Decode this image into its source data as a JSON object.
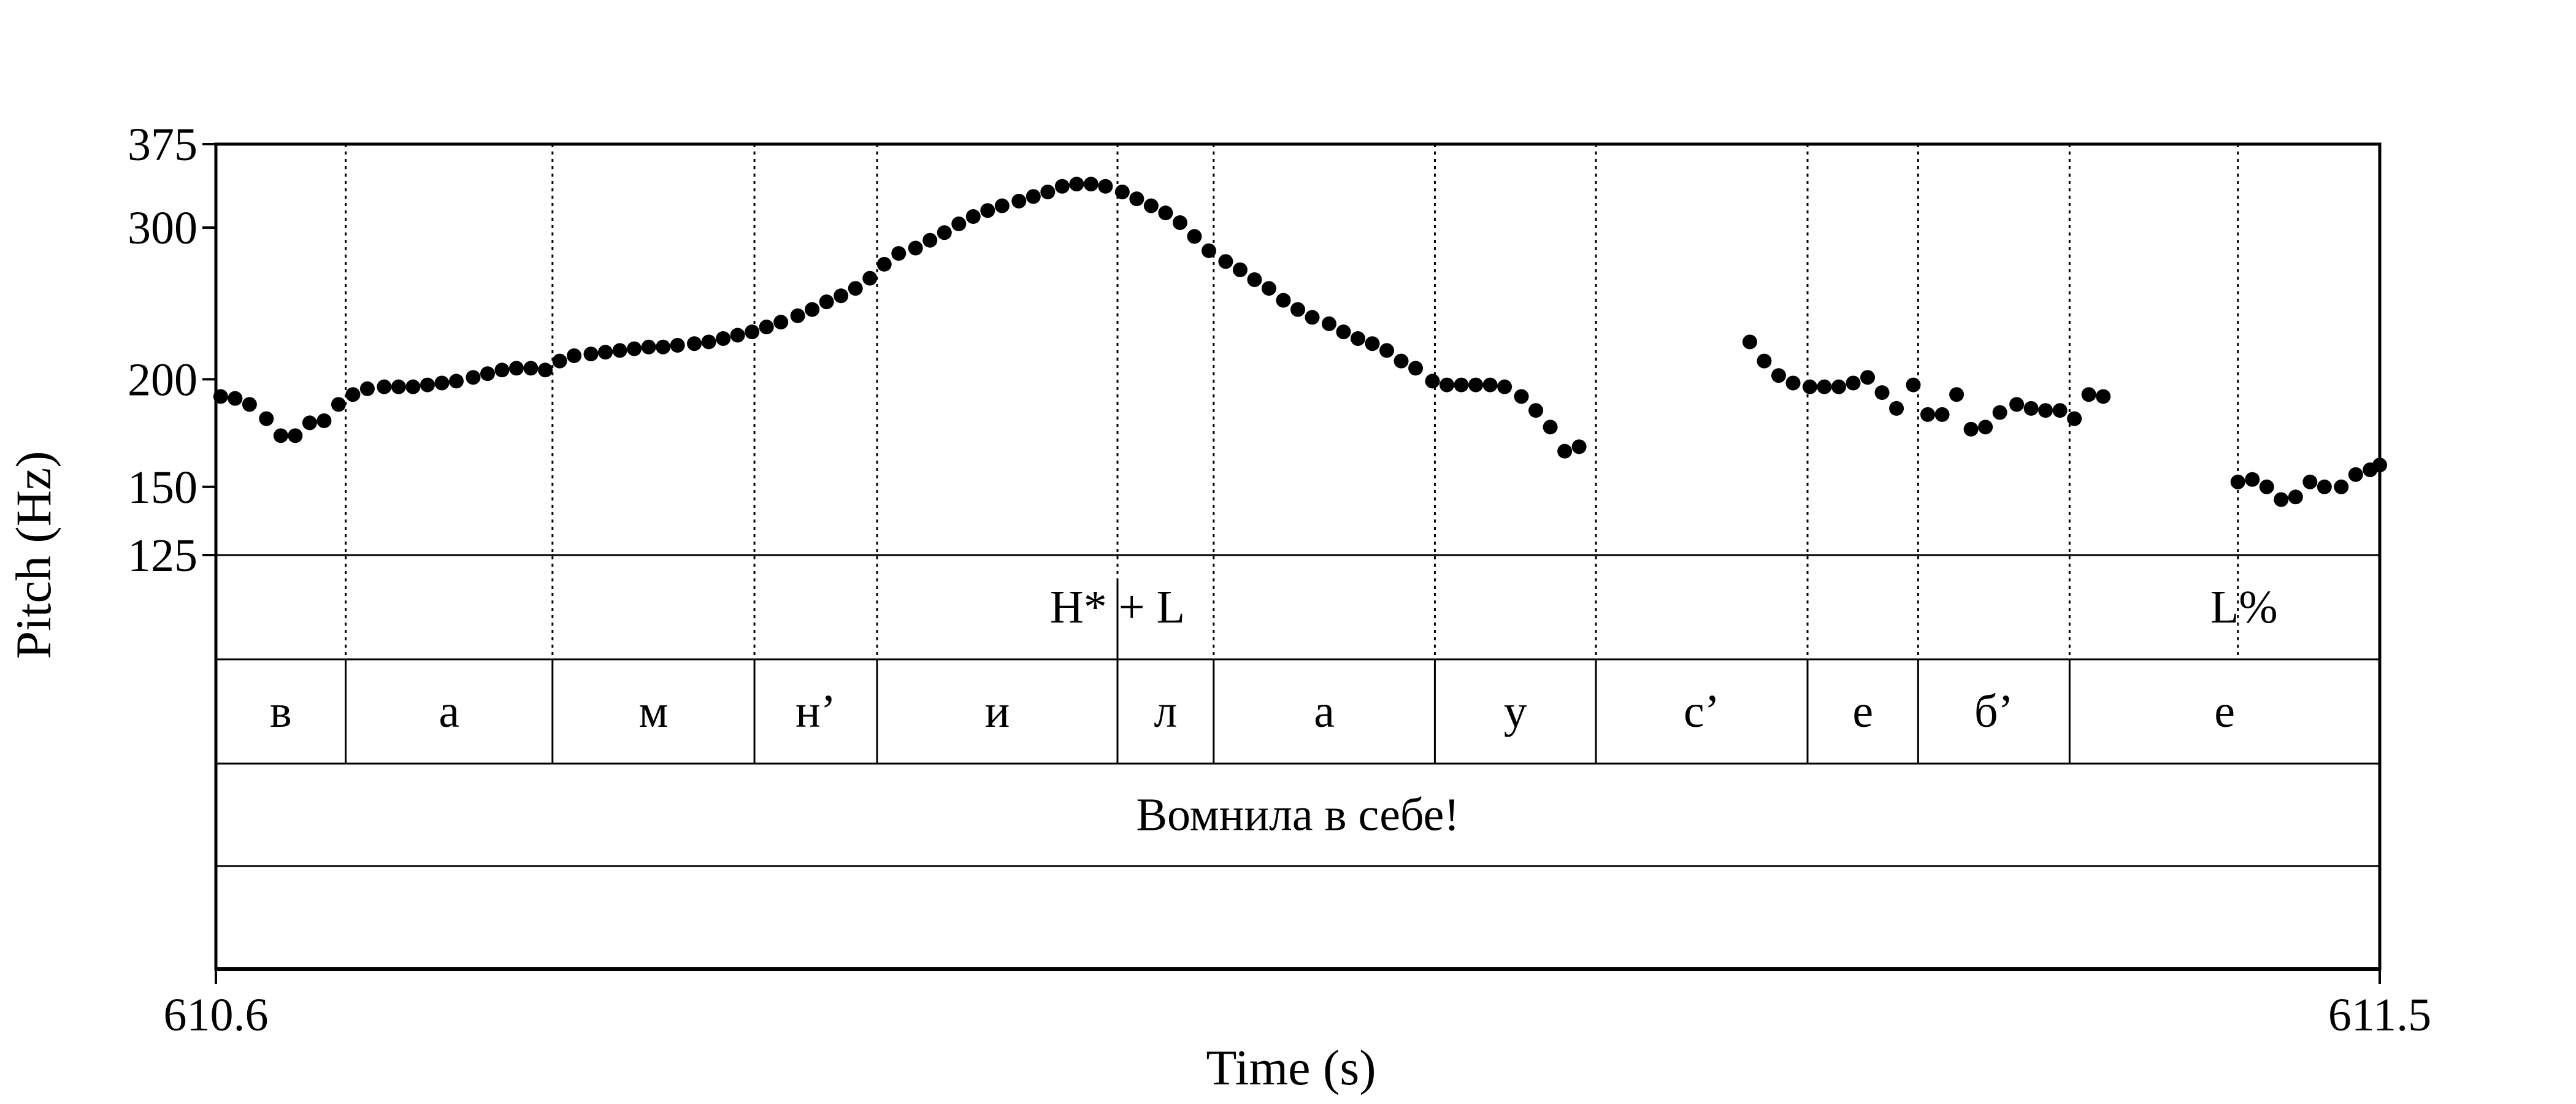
{
  "chart_data": {
    "type": "scatter",
    "xlabel": "Time (s)",
    "ylabel": "Pitch (Hz)",
    "xlim": [
      610.6,
      611.5
    ],
    "ylim": [
      125,
      375
    ],
    "y_scale": "log",
    "x_ticks": [
      "610.6",
      "611.5"
    ],
    "y_ticks": [
      375,
      300,
      200,
      150,
      125
    ],
    "pitch_points": [
      [
        610.602,
        191
      ],
      [
        610.608,
        190
      ],
      [
        610.614,
        187
      ],
      [
        610.621,
        180
      ],
      [
        610.627,
        172
      ],
      [
        610.633,
        172
      ],
      [
        610.639,
        178
      ],
      [
        610.645,
        179
      ],
      [
        610.651,
        187
      ],
      [
        610.657,
        192
      ],
      [
        610.663,
        195
      ],
      [
        610.67,
        196
      ],
      [
        610.676,
        196
      ],
      [
        610.682,
        196
      ],
      [
        610.688,
        197
      ],
      [
        610.694,
        198
      ],
      [
        610.7,
        199
      ],
      [
        610.707,
        201
      ],
      [
        610.713,
        203
      ],
      [
        610.719,
        205
      ],
      [
        610.725,
        206
      ],
      [
        610.731,
        206
      ],
      [
        610.737,
        205
      ],
      [
        610.743,
        210
      ],
      [
        610.749,
        213
      ],
      [
        610.756,
        214
      ],
      [
        610.762,
        215
      ],
      [
        610.768,
        216
      ],
      [
        610.774,
        217
      ],
      [
        610.78,
        218
      ],
      [
        610.786,
        218
      ],
      [
        610.792,
        219
      ],
      [
        610.799,
        220
      ],
      [
        610.805,
        221
      ],
      [
        610.811,
        223
      ],
      [
        610.817,
        225
      ],
      [
        610.823,
        227
      ],
      [
        610.829,
        230
      ],
      [
        610.835,
        233
      ],
      [
        610.842,
        237
      ],
      [
        610.848,
        241
      ],
      [
        610.854,
        246
      ],
      [
        610.86,
        250
      ],
      [
        610.866,
        255
      ],
      [
        610.872,
        262
      ],
      [
        610.878,
        272
      ],
      [
        610.884,
        280
      ],
      [
        610.891,
        284
      ],
      [
        610.897,
        290
      ],
      [
        610.903,
        296
      ],
      [
        610.909,
        303
      ],
      [
        610.915,
        309
      ],
      [
        610.921,
        314
      ],
      [
        610.927,
        318
      ],
      [
        610.934,
        322
      ],
      [
        610.94,
        326
      ],
      [
        610.946,
        330
      ],
      [
        610.952,
        335
      ],
      [
        610.958,
        337
      ],
      [
        610.964,
        337
      ],
      [
        610.97,
        335
      ],
      [
        610.977,
        330
      ],
      [
        610.983,
        324
      ],
      [
        610.989,
        318
      ],
      [
        610.995,
        312
      ],
      [
        611.001,
        304
      ],
      [
        611.007,
        293
      ],
      [
        611.013,
        282
      ],
      [
        611.02,
        274
      ],
      [
        611.026,
        268
      ],
      [
        611.032,
        261
      ],
      [
        611.038,
        255
      ],
      [
        611.044,
        247
      ],
      [
        611.05,
        241
      ],
      [
        611.056,
        236
      ],
      [
        611.063,
        232
      ],
      [
        611.069,
        227
      ],
      [
        611.075,
        223
      ],
      [
        611.081,
        220
      ],
      [
        611.087,
        216
      ],
      [
        611.093,
        210
      ],
      [
        611.099,
        206
      ],
      [
        611.106,
        199
      ],
      [
        611.112,
        197
      ],
      [
        611.118,
        197
      ],
      [
        611.124,
        197
      ],
      [
        611.13,
        197
      ],
      [
        611.136,
        196
      ],
      [
        611.143,
        191
      ],
      [
        611.149,
        184
      ],
      [
        611.155,
        176
      ],
      [
        611.161,
        165
      ],
      [
        611.167,
        167
      ],
      [
        611.238,
        221
      ],
      [
        611.244,
        210
      ],
      [
        611.25,
        202
      ],
      [
        611.256,
        198
      ],
      [
        611.263,
        196
      ],
      [
        611.269,
        196
      ],
      [
        611.275,
        196
      ],
      [
        611.281,
        198
      ],
      [
        611.287,
        201
      ],
      [
        611.293,
        193
      ],
      [
        611.299,
        185
      ],
      [
        611.306,
        197
      ],
      [
        611.312,
        182
      ],
      [
        611.318,
        182
      ],
      [
        611.324,
        192
      ],
      [
        611.33,
        175
      ],
      [
        611.336,
        176
      ],
      [
        611.342,
        183
      ],
      [
        611.349,
        187
      ],
      [
        611.355,
        185
      ],
      [
        611.361,
        184
      ],
      [
        611.367,
        184
      ],
      [
        611.373,
        180
      ],
      [
        611.379,
        192
      ],
      [
        611.385,
        191
      ],
      [
        611.441,
        152
      ],
      [
        611.447,
        153
      ],
      [
        611.453,
        150
      ],
      [
        611.459,
        145
      ],
      [
        611.465,
        146
      ],
      [
        611.471,
        152
      ],
      [
        611.477,
        150
      ],
      [
        611.484,
        150
      ],
      [
        611.49,
        155
      ],
      [
        611.496,
        157
      ],
      [
        611.5,
        159
      ]
    ],
    "dotted_boundaries": [
      610.654,
      610.74,
      610.824,
      610.875,
      610.975,
      611.015,
      611.107,
      611.174,
      611.262,
      611.308,
      611.371,
      611.441
    ],
    "solid_boundaries": [
      610.975
    ],
    "tiers": {
      "tones": [
        {
          "label": "H* + L",
          "time": 610.975
        },
        {
          "label": "L%",
          "time": 611.441
        }
      ],
      "segments": [
        {
          "label": "в",
          "start": 610.6,
          "end": 610.654
        },
        {
          "label": "а",
          "start": 610.654,
          "end": 610.74
        },
        {
          "label": "м",
          "start": 610.74,
          "end": 610.824
        },
        {
          "label": "н’",
          "start": 610.824,
          "end": 610.875
        },
        {
          "label": "и",
          "start": 610.875,
          "end": 610.975
        },
        {
          "label": "л",
          "start": 610.975,
          "end": 611.015
        },
        {
          "label": "а",
          "start": 611.015,
          "end": 611.107
        },
        {
          "label": "у",
          "start": 611.107,
          "end": 611.174
        },
        {
          "label": "с’",
          "start": 611.174,
          "end": 611.262
        },
        {
          "label": "е",
          "start": 611.262,
          "end": 611.308
        },
        {
          "label": "б’",
          "start": 611.308,
          "end": 611.371
        },
        {
          "label": "е",
          "start": 611.371,
          "end": 611.5
        }
      ],
      "phrase": [
        {
          "label": "Вомнила в себе!",
          "start": 610.6,
          "end": 611.5
        }
      ],
      "empty": []
    }
  }
}
